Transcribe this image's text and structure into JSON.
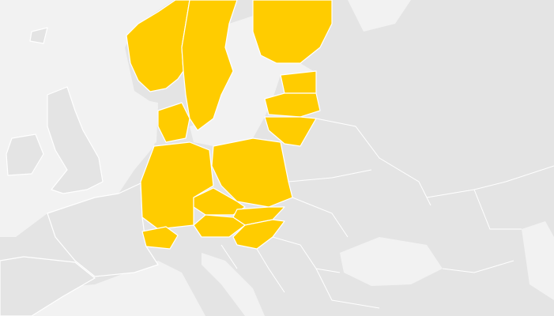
{
  "map": {
    "highlight_color": "#ffcc00",
    "land_color": "#e4e4e4",
    "sea_color": "#f2f2f2"
  }
}
